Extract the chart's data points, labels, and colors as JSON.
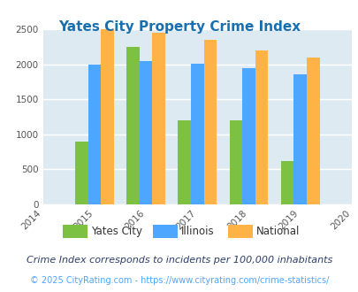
{
  "title": "Yates City Property Crime Index",
  "title_color": "#1a6faf",
  "years": [
    2015,
    2016,
    2017,
    2018,
    2019
  ],
  "yates_city": [
    900,
    2250,
    1200,
    1200,
    620
  ],
  "illinois": [
    2000,
    2040,
    2010,
    1940,
    1850
  ],
  "national": [
    2500,
    2450,
    2350,
    2200,
    2100
  ],
  "colors": {
    "yates_city": "#7dc142",
    "illinois": "#4da6ff",
    "national": "#ffb347"
  },
  "xlim": [
    2014,
    2020
  ],
  "ylim": [
    0,
    2500
  ],
  "yticks": [
    0,
    500,
    1000,
    1500,
    2000,
    2500
  ],
  "background_color": "#deeaf1",
  "grid_color": "#ffffff",
  "legend_labels": [
    "Yates City",
    "Illinois",
    "National"
  ],
  "footnote1": "Crime Index corresponds to incidents per 100,000 inhabitants",
  "footnote2": "© 2025 CityRating.com - https://www.cityrating.com/crime-statistics/",
  "footnote1_color": "#2c3e6b",
  "footnote2_color": "#4da6ff",
  "bar_width": 0.25
}
